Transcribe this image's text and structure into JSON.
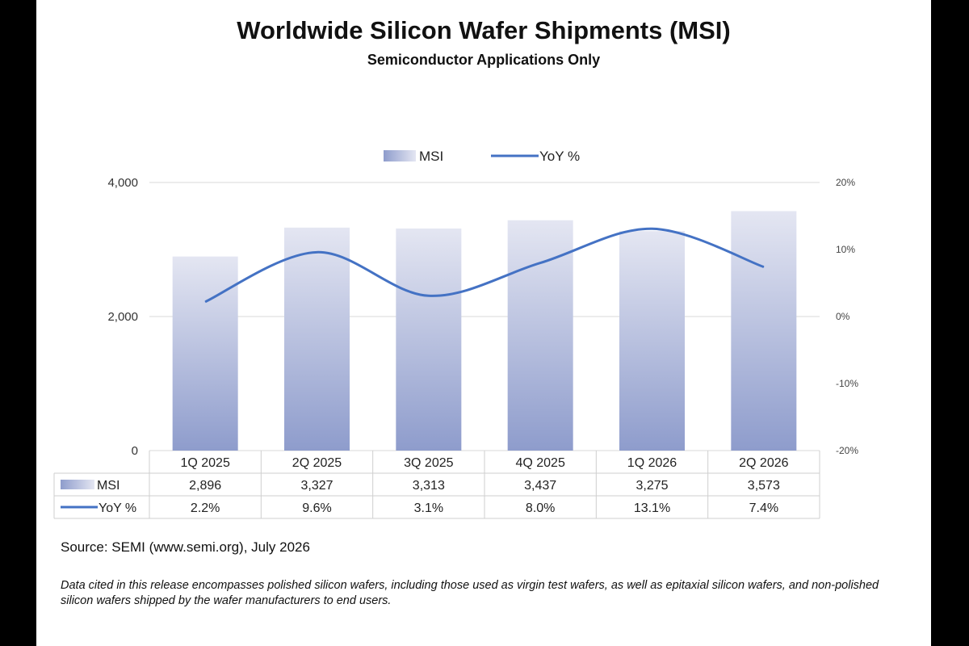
{
  "chart_data": {
    "type": "bar",
    "title": "Worldwide Silicon Wafer Shipments (MSI)",
    "subtitle": "Semiconductor Applications Only",
    "categories": [
      "1Q 2025",
      "2Q 2025",
      "3Q 2025",
      "4Q 2025",
      "1Q 2026",
      "2Q 2026"
    ],
    "series": [
      {
        "name": "MSI",
        "type": "bar",
        "axis": "left",
        "values": [
          2896,
          3327,
          3313,
          3437,
          3275,
          3573
        ],
        "labels": [
          "2,896",
          "3,327",
          "3,313",
          "3,437",
          "3,275",
          "3,573"
        ]
      },
      {
        "name": "YoY %",
        "type": "line",
        "axis": "right",
        "values": [
          2.2,
          9.6,
          3.1,
          8.0,
          13.1,
          7.4
        ],
        "labels": [
          "2.2%",
          "9.6%",
          "3.1%",
          "8.0%",
          "13.1%",
          "7.4%"
        ]
      }
    ],
    "ylim": [
      0,
      4000
    ],
    "y_ticks": [
      "0",
      "2,000",
      "4,000"
    ],
    "y2lim": [
      -20,
      20
    ],
    "y2_ticks": [
      "-20%",
      "-10%",
      "0%",
      "10%",
      "20%"
    ],
    "legend_position": "top-center",
    "grid": true,
    "data_table": true,
    "bar_color_top": "#e4e6f2",
    "bar_color_bottom": "#8e9ccc",
    "line_color": "#4472c4"
  },
  "source": "Source: SEMI (www.semi.org), July 2026",
  "note": "Data cited in this release encompasses polished silicon wafers, including those used as virgin test wafers, as well as epitaxial silicon wafers, and non-polished silicon wafers shipped by the wafer manufacturers to end users."
}
